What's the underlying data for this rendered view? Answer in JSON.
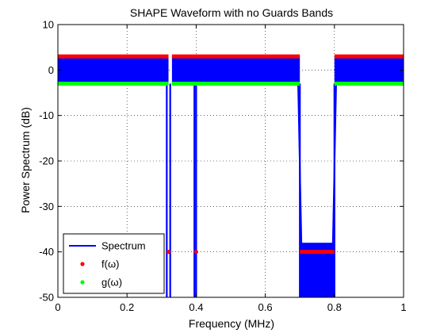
{
  "chart_data": {
    "type": "line",
    "title": "SHAPE Waveform with no Guards Bands",
    "xlabel": "Frequency (MHz)",
    "ylabel": "Power Spectrum (dB)",
    "xlim": [
      0,
      1
    ],
    "ylim": [
      -50,
      10
    ],
    "xticks": [
      0,
      0.2,
      0.4,
      0.6,
      0.8,
      1
    ],
    "xtick_labels": [
      "0",
      "0.2",
      "0.4",
      "0.6",
      "0.8",
      "1"
    ],
    "yticks": [
      -50,
      -40,
      -30,
      -20,
      -10,
      0,
      10
    ],
    "ytick_labels": [
      "-50",
      "-40",
      "-30",
      "-20",
      "-10",
      "0",
      "10"
    ],
    "grid": true,
    "grid_style": "dotted",
    "legend_position": "bottom-left",
    "series": [
      {
        "name": "Spectrum",
        "style": "line",
        "color": "#0000ff",
        "bands": [
          {
            "x_start": 0.0,
            "x_end": 0.32,
            "y_min": -3,
            "y_max": 3
          },
          {
            "x_start": 0.33,
            "x_end": 0.7,
            "y_min": -3,
            "y_max": 3
          },
          {
            "x_start": 0.8,
            "x_end": 1.0,
            "y_min": -3,
            "y_max": 3
          },
          {
            "x_start": 0.7,
            "x_end": 0.8,
            "y_min": -50,
            "y_max": -38
          }
        ],
        "notches": [
          {
            "x": 0.315,
            "y_min": -50
          },
          {
            "x": 0.325,
            "y_min": -50
          },
          {
            "x": 0.395,
            "y_min": -50
          },
          {
            "x": 0.4,
            "y_min": -50
          },
          {
            "x": 0.7,
            "y_min": -50
          },
          {
            "x": 0.8,
            "y_min": -50
          }
        ],
        "transitions": [
          {
            "x1": 0.695,
            "y1": -3,
            "x2": 0.705,
            "y2": -40
          },
          {
            "x1": 0.795,
            "y1": -40,
            "x2": 0.805,
            "y2": -3
          }
        ]
      },
      {
        "name": "f(ω)",
        "style": "marker",
        "color": "#ff0000",
        "segments": [
          {
            "x_start": 0.0,
            "x_end": 0.32,
            "y": 3
          },
          {
            "x_start": 0.33,
            "x_end": 0.7,
            "y": 3
          },
          {
            "x_start": 0.8,
            "x_end": 1.0,
            "y": 3
          },
          {
            "x_start": 0.7,
            "x_end": 0.8,
            "y": -40
          }
        ],
        "points": [
          {
            "x": 0.32,
            "y": -40
          },
          {
            "x": 0.4,
            "y": -40
          }
        ]
      },
      {
        "name": "g(ω)",
        "style": "marker",
        "color": "#00ff00",
        "segments": [
          {
            "x_start": 0.0,
            "x_end": 0.32,
            "y": -3
          },
          {
            "x_start": 0.33,
            "x_end": 0.7,
            "y": -3
          },
          {
            "x_start": 0.8,
            "x_end": 1.0,
            "y": -3
          }
        ]
      }
    ]
  }
}
